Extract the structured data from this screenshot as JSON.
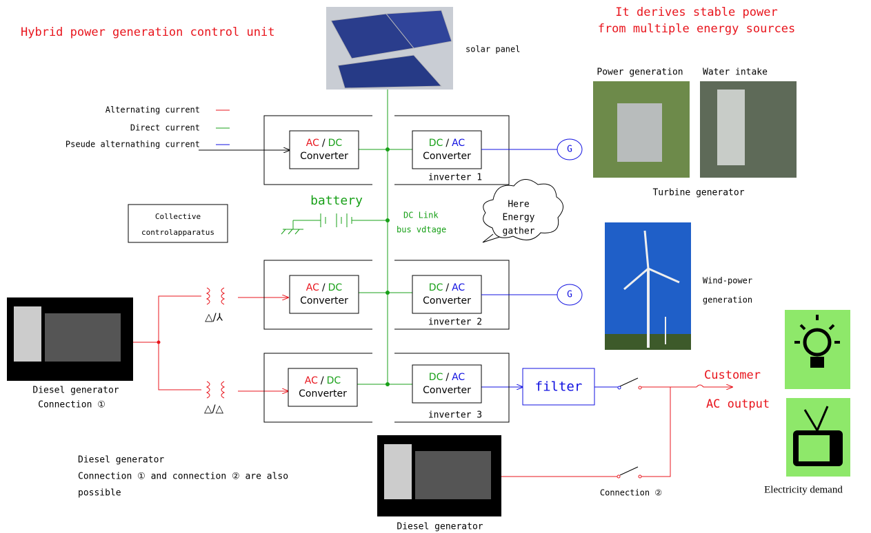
{
  "title": "Hybrid power generation control unit",
  "tagline": [
    "It derives stable power",
    "from multiple energy sources"
  ],
  "solar_panel": "solar panel",
  "turbine": {
    "photo_labels": [
      "Power generation",
      "Water intake"
    ],
    "label": "Turbine generator"
  },
  "legend": [
    "Alternating current",
    "Direct current",
    "Pseude alternathing current"
  ],
  "converters": [
    {
      "from": "AC",
      "sep": "/",
      "to": "DC",
      "label": "Converter"
    },
    {
      "from": "DC",
      "sep": "/",
      "to": "AC",
      "label": "Converter"
    },
    {
      "from": "AC",
      "sep": "/",
      "to": "DC",
      "label": "Converter"
    },
    {
      "from": "DC",
      "sep": "/",
      "to": "AC",
      "label": "Converter"
    },
    {
      "from": "AC",
      "sep": "/",
      "to": "DC",
      "label": "Converter"
    },
    {
      "from": "DC",
      "sep": "/",
      "to": "AC",
      "label": "Converter"
    }
  ],
  "inverters": [
    "inverter  1",
    "inverter  2",
    "inverter  3"
  ],
  "generators": [
    "G",
    "G"
  ],
  "battery": "battery",
  "dc_link": [
    "DC Link",
    "bus vdtage"
  ],
  "cloud": [
    "Here",
    "Energy",
    "gather"
  ],
  "control": [
    "Collective",
    "controlapparatus"
  ],
  "wind": [
    "Wind-power",
    "generation"
  ],
  "transformers": [
    "△/⅄",
    "△/△"
  ],
  "diesel_left": [
    "Diesel generator",
    "Connection ①"
  ],
  "filter": "filter",
  "customer": [
    "Customer",
    "AC output"
  ],
  "demand": "Electricity demand",
  "note": [
    "Diesel generator",
    "Connection ① and connection ② are also",
    "possible"
  ],
  "connection2": "Connection ②",
  "diesel_bottom": "Diesel generator"
}
